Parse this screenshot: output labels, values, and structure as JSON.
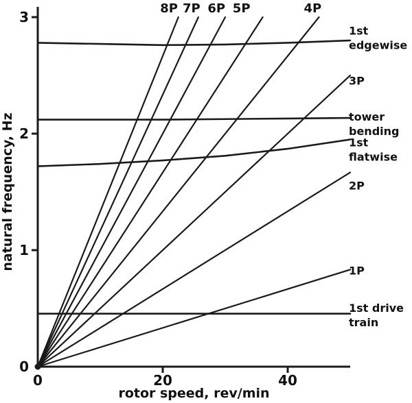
{
  "figure": {
    "xlabel": "rotor speed, rev/min",
    "ylabel": "natural frequency, Hz"
  },
  "chart_data": {
    "type": "line",
    "xlabel": "rotor speed, rev/min",
    "ylabel": "natural frequency, Hz",
    "xlim": [
      0,
      50
    ],
    "ylim": [
      0,
      3
    ],
    "xticks": [
      0,
      20,
      40
    ],
    "yticks": [
      0,
      1,
      2,
      3
    ],
    "grid": false,
    "legend_position": "none",
    "background": "#ffffff",
    "line_color": "#1a1a1a",
    "series": [
      {
        "name": "8P",
        "kind": "rotor-harmonic",
        "x": [
          0,
          22.5
        ],
        "y": [
          0,
          3
        ]
      },
      {
        "name": "7P",
        "kind": "rotor-harmonic",
        "x": [
          0,
          25.7
        ],
        "y": [
          0,
          3
        ]
      },
      {
        "name": "6P",
        "kind": "rotor-harmonic",
        "x": [
          0,
          30
        ],
        "y": [
          0,
          3
        ]
      },
      {
        "name": "5P",
        "kind": "rotor-harmonic",
        "x": [
          0,
          36
        ],
        "y": [
          0,
          3
        ]
      },
      {
        "name": "4P",
        "kind": "rotor-harmonic",
        "x": [
          0,
          45
        ],
        "y": [
          0,
          3
        ]
      },
      {
        "name": "3P",
        "kind": "rotor-harmonic",
        "x": [
          0,
          50
        ],
        "y": [
          0,
          2.5
        ]
      },
      {
        "name": "2P",
        "kind": "rotor-harmonic",
        "x": [
          0,
          50
        ],
        "y": [
          0,
          1.667
        ]
      },
      {
        "name": "1P",
        "kind": "rotor-harmonic",
        "x": [
          0,
          50
        ],
        "y": [
          0,
          0.833
        ]
      },
      {
        "name": "1st edgewise",
        "kind": "natural-frequency",
        "x": [
          0,
          10,
          20,
          30,
          40,
          50
        ],
        "y": [
          2.78,
          2.77,
          2.76,
          2.765,
          2.78,
          2.8
        ]
      },
      {
        "name": "tower bending",
        "kind": "natural-frequency",
        "x": [
          0,
          10,
          20,
          30,
          40,
          50
        ],
        "y": [
          2.12,
          2.12,
          2.12,
          2.125,
          2.13,
          2.135
        ]
      },
      {
        "name": "1st flatwise",
        "kind": "natural-frequency",
        "x": [
          0,
          10,
          20,
          30,
          40,
          50
        ],
        "y": [
          1.72,
          1.74,
          1.77,
          1.81,
          1.87,
          1.95
        ]
      },
      {
        "name": "1st drive train",
        "kind": "natural-frequency",
        "x": [
          0,
          10,
          20,
          30,
          40,
          50
        ],
        "y": [
          0.455,
          0.455,
          0.455,
          0.455,
          0.455,
          0.455
        ]
      }
    ],
    "top_labels": [
      {
        "text": "8P",
        "x": 21
      },
      {
        "text": "7P",
        "x": 24.6
      },
      {
        "text": "6P",
        "x": 28.6
      },
      {
        "text": "5P",
        "x": 32.6
      },
      {
        "text": "4P",
        "x": 44
      }
    ],
    "right_labels": [
      {
        "lines": [
          "1st",
          "edgewise"
        ],
        "y": 2.88
      },
      {
        "lines": [
          "3P"
        ],
        "y": 2.45
      },
      {
        "lines": [
          "tower",
          "bending"
        ],
        "y": 2.14
      },
      {
        "lines": [
          "1st",
          "flatwise"
        ],
        "y": 1.92
      },
      {
        "lines": [
          "2P"
        ],
        "y": 1.55
      },
      {
        "lines": [
          "1P"
        ],
        "y": 0.82
      },
      {
        "lines": [
          "1st drive",
          "train"
        ],
        "y": 0.5
      }
    ]
  }
}
